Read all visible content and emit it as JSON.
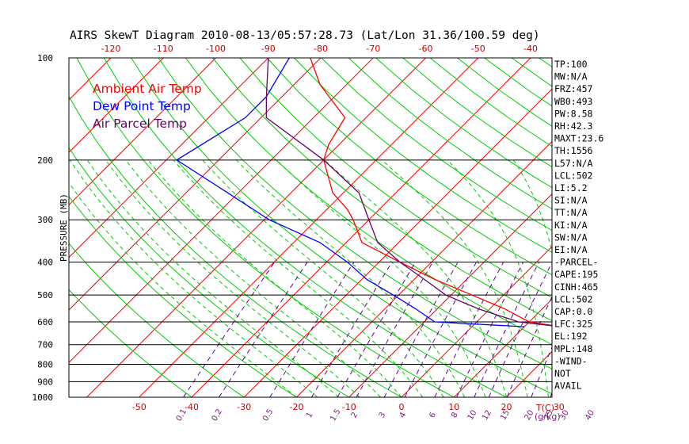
{
  "chart_data": {
    "type": "line",
    "title": "AIRS SkewT Diagram 2010-08-13/05:57:28.73 (Lat/Lon 31.36/100.59 deg)",
    "ylabel": "PRESSURE (MB)",
    "xlabel": "T(C)",
    "mixing_ratio_unit": "(g/kg)",
    "ylim": [
      1000,
      100
    ],
    "pressure_ticks": [
      100,
      200,
      300,
      400,
      500,
      600,
      700,
      800,
      900,
      1000
    ],
    "bottom_temp_ticks": [
      -50,
      -40,
      -30,
      -20,
      -10,
      0,
      10,
      20,
      30
    ],
    "top_temp_ticks": [
      -120,
      -110,
      -100,
      -90,
      -80,
      -70,
      -60,
      -50,
      -40
    ],
    "mixing_ratio_labels": [
      "0.1",
      "0.2",
      "0.5",
      "1",
      "1.5",
      "2",
      "3",
      "4",
      "6",
      "8",
      "10",
      "12",
      "15",
      "20",
      "25",
      "30",
      "40"
    ],
    "legend": [
      {
        "name": "Ambient Air Temp",
        "color": "#ff0000"
      },
      {
        "name": "Dew Point Temp",
        "color": "#0000ff"
      },
      {
        "name": "Air Parcel Temp",
        "color": "#660066"
      }
    ],
    "series": [
      {
        "name": "Ambient Air Temp",
        "p": [
          100,
          120,
          150,
          180,
          200,
          250,
          280,
          300,
          350,
          400,
          450,
          500,
          550,
          600,
          620
        ],
        "t": [
          -82,
          -75,
          -64,
          -62,
          -60,
          -52,
          -46,
          -43,
          -37,
          -26,
          -16,
          -6,
          3,
          10,
          17
        ]
      },
      {
        "name": "Dew Point Temp",
        "p": [
          100,
          130,
          150,
          200,
          250,
          300,
          350,
          400,
          450,
          500,
          550,
          600,
          620
        ],
        "t": [
          -86,
          -83,
          -83,
          -88,
          -72,
          -59,
          -45,
          -36,
          -29,
          -21,
          -14,
          -8,
          10
        ]
      },
      {
        "name": "Air Parcel Temp",
        "p": [
          100,
          130,
          150,
          200,
          250,
          300,
          350,
          400,
          450,
          500,
          550,
          600,
          620
        ],
        "t": [
          -90,
          -83,
          -79,
          -60,
          -47,
          -40,
          -34,
          -26,
          -18,
          -11,
          -2,
          8,
          17
        ]
      }
    ],
    "indices": [
      "TP:100",
      "MW:N/A",
      "FRZ:457",
      "WB0:493",
      "PW:8.58",
      "RH:42.3",
      "MAXT:23.6",
      "TH:1556",
      "L57:N/A",
      "LCL:502",
      "LI:5.2",
      "SI:N/A",
      "TT:N/A",
      "KI:N/A",
      "SW:N/A",
      "EI:N/A",
      "-PARCEL-",
      "CAPE:195",
      "CINH:465",
      "LCL:502",
      "CAP:0.0",
      "LFC:325",
      "EL:192",
      "MPL:148",
      "-WIND-",
      "NOT",
      "AVAIL"
    ],
    "colors": {
      "isotherm": "#ff0000",
      "dry_adiabat": "#00cc00",
      "moist_adiabat": "#00cc00",
      "mixing_ratio": "#660099",
      "isobar": "#000000"
    }
  }
}
